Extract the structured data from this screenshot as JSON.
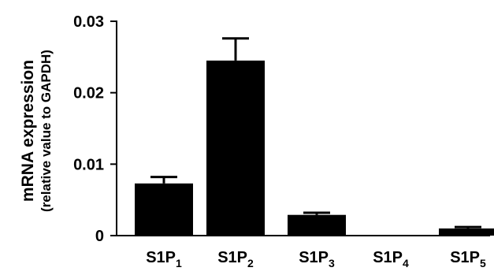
{
  "chart_data": {
    "type": "bar",
    "title": "",
    "xlabel": "",
    "ylabel": "mRNA expression",
    "ylabel_sub": "(relative value to GAPDH)",
    "ylim": [
      0,
      0.03
    ],
    "yticks": [
      {
        "value": 0,
        "label": "0"
      },
      {
        "value": 0.01,
        "label": "0.01"
      },
      {
        "value": 0.02,
        "label": "0.02"
      },
      {
        "value": 0.03,
        "label": "0.03"
      }
    ],
    "categories": [
      {
        "base": "S1P",
        "sub": "1"
      },
      {
        "base": "S1P",
        "sub": "2"
      },
      {
        "base": "S1P",
        "sub": "3"
      },
      {
        "base": "S1P",
        "sub": "4"
      },
      {
        "base": "S1P",
        "sub": "5"
      }
    ],
    "values": [
      0.0073,
      0.0245,
      0.0029,
      0.0001,
      0.001
    ],
    "errors": [
      0.0009,
      0.0031,
      0.0003,
      0.0,
      0.0002
    ],
    "grid": false,
    "legend": "none",
    "bar_color": "#000000"
  }
}
